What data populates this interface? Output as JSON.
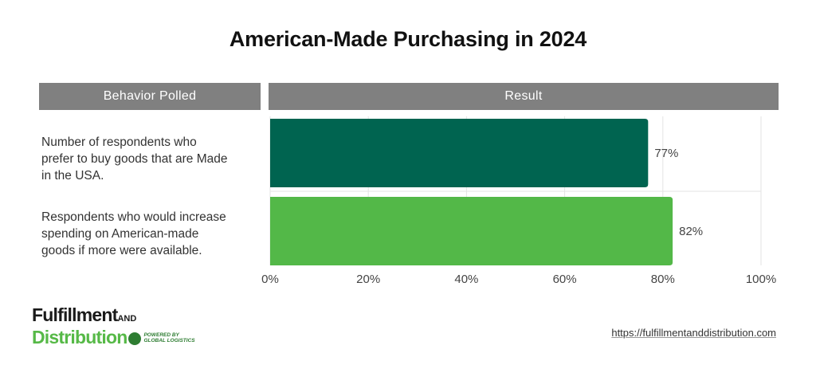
{
  "title": "American-Made Purchasing in 2024",
  "headers": {
    "behavior": "Behavior Polled",
    "result": "Result"
  },
  "logo": {
    "line1": "Fulfillment",
    "and": "AND",
    "line2": "Distribution",
    "powered_by": "POWERED BY",
    "powered_company": "GLOBAL LOGISTICS"
  },
  "url": "https://fulfillmentanddistribution.com",
  "colors": {
    "bar1": "#006450",
    "bar2": "#53b848",
    "header": "#808080"
  },
  "chart_data": {
    "type": "bar",
    "orientation": "horizontal",
    "categories": [
      "Number of respondents who prefer to buy goods that are Made in the USA.",
      "Respondents who would increase spending on American-made goods if more were available."
    ],
    "category_lines": [
      [
        "Number of respondents who",
        "prefer to buy goods that are Made",
        "in the USA."
      ],
      [
        "Respondents who would increase",
        "spending on American-made",
        "goods if more were available."
      ]
    ],
    "values": [
      77,
      82
    ],
    "value_labels": [
      "77%",
      "82%"
    ],
    "xlim": [
      0,
      100
    ],
    "x_ticks": [
      0,
      20,
      40,
      60,
      80,
      100
    ],
    "x_tick_labels": [
      "0%",
      "20%",
      "40%",
      "60%",
      "80%",
      "100%"
    ],
    "grid": true,
    "title": "American-Made Purchasing in 2024"
  }
}
